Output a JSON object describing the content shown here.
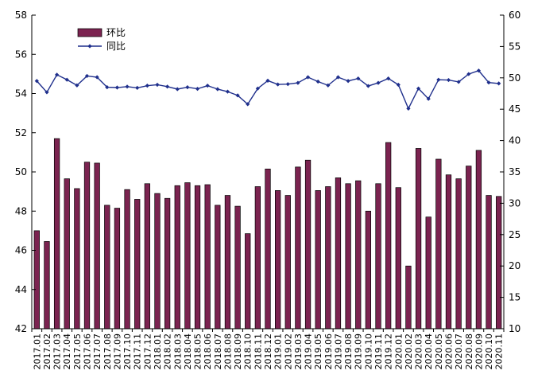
{
  "chart_data": {
    "type": "bar",
    "categories": [
      "2017.01",
      "2017.02",
      "2017.03",
      "2017.04",
      "2017.05",
      "2017.06",
      "2017.07",
      "2017.08",
      "2017.09",
      "2017.10",
      "2017.11",
      "2017.12",
      "2018.01",
      "2018.02",
      "2018.03",
      "2018.04",
      "2018.05",
      "2018.06",
      "2018.07",
      "2018.08",
      "2018.09",
      "2018.10",
      "2018.11",
      "2018.12",
      "2019.01",
      "2019.02",
      "2019.03",
      "2019.04",
      "2019.05",
      "2019.06",
      "2019.07",
      "2019.08",
      "2019.09",
      "2019.10",
      "2019.11",
      "2019.12",
      "2020.01",
      "2020.02",
      "2020.03",
      "2020.04",
      "2020.05",
      "2020.06",
      "2020.07",
      "2020.08",
      "2020.09",
      "2020.10",
      "2020.11"
    ],
    "series": [
      {
        "name": "环比",
        "type": "bar",
        "axis": "left",
        "color": "#7b2350",
        "values": [
          47.0,
          46.45,
          51.7,
          49.65,
          49.15,
          50.5,
          50.45,
          48.3,
          48.15,
          49.1,
          48.6,
          49.4,
          48.9,
          48.65,
          49.3,
          49.45,
          49.3,
          49.35,
          48.3,
          48.8,
          48.25,
          46.85,
          49.25,
          50.15,
          49.05,
          48.8,
          50.25,
          50.6,
          49.05,
          49.25,
          49.7,
          49.4,
          49.55,
          48.0,
          49.4,
          51.5,
          49.2,
          45.2,
          51.2,
          47.7,
          50.65,
          49.85,
          49.65,
          50.3,
          51.1,
          48.8,
          48.75
        ]
      },
      {
        "name": "同比",
        "type": "line",
        "axis": "right",
        "color": "#1f2f8c",
        "values": [
          49.5,
          47.7,
          50.5,
          49.7,
          48.8,
          50.3,
          50.1,
          48.5,
          48.45,
          48.6,
          48.4,
          48.75,
          48.9,
          48.6,
          48.2,
          48.5,
          48.25,
          48.75,
          48.2,
          47.8,
          47.2,
          45.8,
          48.3,
          49.55,
          48.95,
          49.0,
          49.2,
          50.1,
          49.4,
          48.8,
          50.1,
          49.5,
          49.9,
          48.7,
          49.2,
          49.9,
          48.9,
          45.1,
          48.3,
          46.65,
          49.7,
          49.65,
          49.35,
          50.6,
          51.15,
          49.25,
          49.1
        ]
      }
    ],
    "left_axis": {
      "min": 42,
      "max": 58,
      "ticks": [
        42,
        44,
        46,
        48,
        50,
        52,
        54,
        56,
        58
      ]
    },
    "right_axis": {
      "min": 10,
      "max": 60,
      "ticks": [
        10,
        15,
        20,
        25,
        30,
        35,
        40,
        45,
        50,
        55,
        60
      ]
    },
    "legend_position": "top-left",
    "grid": false,
    "title": "",
    "xlabel": "",
    "ylabel": ""
  }
}
